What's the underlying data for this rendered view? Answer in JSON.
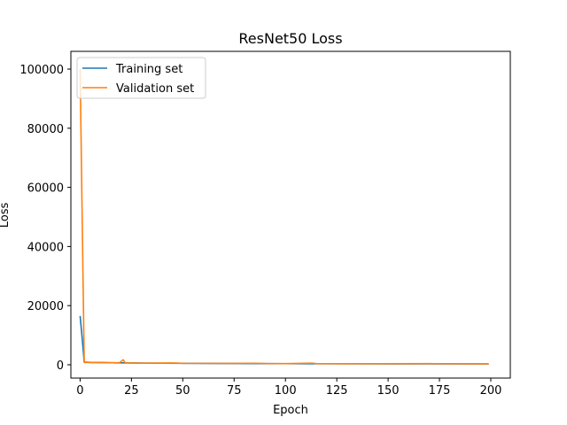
{
  "chart_data": {
    "type": "line",
    "title": "ResNet50 Loss",
    "xlabel": "Epoch",
    "ylabel": "Loss",
    "xlim": [
      -4.5,
      209.5
    ],
    "ylim": [
      -4500,
      106000
    ],
    "xticks": [
      0,
      25,
      50,
      75,
      100,
      125,
      150,
      175,
      200
    ],
    "yticks": [
      0,
      20000,
      40000,
      60000,
      80000,
      100000
    ],
    "grid": false,
    "legend_position": "upper-left",
    "series": [
      {
        "name": "Training set",
        "color": "#1f77b4",
        "points": [
          [
            0,
            16500
          ],
          [
            1,
            9000
          ],
          [
            2,
            900
          ],
          [
            5,
            800
          ],
          [
            10,
            750
          ],
          [
            15,
            700
          ],
          [
            20,
            650
          ],
          [
            25,
            600
          ],
          [
            30,
            560
          ],
          [
            40,
            520
          ],
          [
            50,
            480
          ],
          [
            60,
            450
          ],
          [
            75,
            420
          ],
          [
            90,
            390
          ],
          [
            100,
            370
          ],
          [
            110,
            350
          ],
          [
            125,
            330
          ],
          [
            150,
            310
          ],
          [
            175,
            300
          ],
          [
            199,
            290
          ]
        ]
      },
      {
        "name": "Validation set",
        "color": "#ff7f0e",
        "points": [
          [
            0,
            100000
          ],
          [
            1,
            50000
          ],
          [
            2,
            800
          ],
          [
            5,
            750
          ],
          [
            10,
            720
          ],
          [
            15,
            700
          ],
          [
            19,
            600
          ],
          [
            21,
            1700
          ],
          [
            22,
            650
          ],
          [
            25,
            600
          ],
          [
            30,
            550
          ],
          [
            45,
            600
          ],
          [
            50,
            500
          ],
          [
            60,
            480
          ],
          [
            75,
            450
          ],
          [
            85,
            520
          ],
          [
            90,
            420
          ],
          [
            100,
            400
          ],
          [
            113,
            550
          ],
          [
            115,
            380
          ],
          [
            125,
            360
          ],
          [
            150,
            340
          ],
          [
            170,
            380
          ],
          [
            175,
            330
          ],
          [
            199,
            310
          ]
        ]
      }
    ]
  }
}
